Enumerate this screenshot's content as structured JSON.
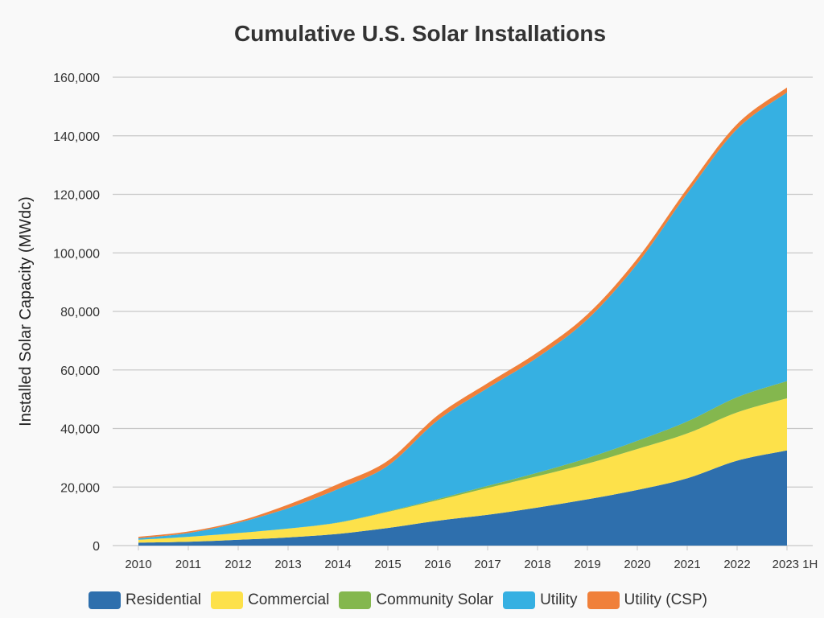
{
  "chart_data": {
    "type": "area",
    "stacked": true,
    "title": "Cumulative U.S. Solar Installations",
    "xlabel": "",
    "ylabel": "Installed Solar Capacity (MWdc)",
    "ylim": [
      0,
      160000
    ],
    "yticks": [
      "0",
      "20,000",
      "40,000",
      "60,000",
      "80,000",
      "100,000",
      "120,000",
      "140,000",
      "160,000"
    ],
    "grid": true,
    "legend_position": "bottom",
    "categories": [
      "2010",
      "2011",
      "2012",
      "2013",
      "2014",
      "2015",
      "2016",
      "2017",
      "2018",
      "2019",
      "2020",
      "2021",
      "2022",
      "2023 1H"
    ],
    "series": [
      {
        "name": "Residential",
        "color": "#2e6fad",
        "values": [
          1000,
          1300,
          2000,
          2800,
          4000,
          6000,
          8500,
          10500,
          13000,
          15800,
          19000,
          23000,
          29000,
          32500
        ]
      },
      {
        "name": "Commercial",
        "color": "#fde14a",
        "values": [
          1000,
          1700,
          2300,
          3000,
          3800,
          5500,
          7000,
          9200,
          10700,
          12200,
          14000,
          15300,
          16500,
          17800
        ]
      },
      {
        "name": "Community Solar",
        "color": "#84b74e",
        "values": [
          0,
          0,
          0,
          0,
          100,
          200,
          400,
          700,
          1200,
          1900,
          2800,
          4100,
          5200,
          5900
        ]
      },
      {
        "name": "Utility",
        "color": "#36b0e2",
        "values": [
          500,
          1300,
          3500,
          7000,
          11400,
          15600,
          26900,
          33400,
          39400,
          47400,
          60500,
          77900,
          91600,
          98600
        ]
      },
      {
        "name": "Utility (CSP)",
        "color": "#f0803a",
        "values": [
          500,
          500,
          500,
          1200,
          1700,
          1700,
          1700,
          1700,
          1700,
          1700,
          1700,
          1700,
          1700,
          1700
        ]
      }
    ]
  }
}
